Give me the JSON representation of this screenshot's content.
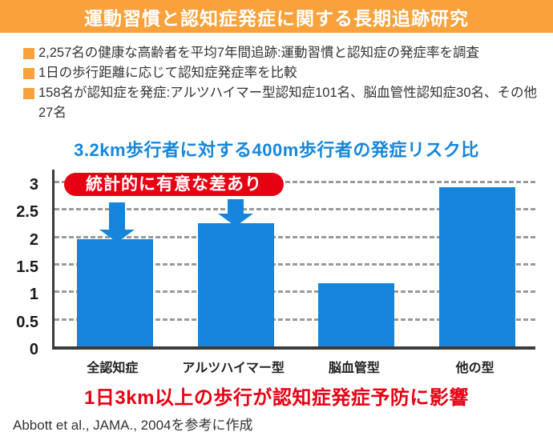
{
  "header": {
    "title": "運動習慣と認知症発症に関する長期追跡研究"
  },
  "bullets": [
    "2,257名の健康な高齢者を平均7年間追跡:運動習慣と認知症の発症率を調査",
    "1日の歩行距離に応じて認知症発症率を比較",
    "158名が認知症を発症:アルツハイマー型認知症101名、脳血管性認知症30名、その他27名"
  ],
  "chart_data": {
    "type": "bar",
    "title": "3.2km歩行者に対する400m歩行者の発症リスク比",
    "categories": [
      "全認知症",
      "アルツハイマー型",
      "脳血管型",
      "他の型"
    ],
    "values": [
      1.95,
      2.25,
      1.15,
      2.9
    ],
    "yticks": [
      "0",
      "0.5",
      "1",
      "1.5",
      "2",
      "2.5",
      "3"
    ],
    "ylim": [
      0,
      3.3
    ],
    "grid": "horizontal-dashed",
    "legend": "none",
    "annotation": "統計的に有意な差あり",
    "annotation_targets": [
      "全認知症",
      "アルツハイマー型"
    ],
    "bar_color": "#1586DB",
    "xlabel": "",
    "ylabel": ""
  },
  "conclusion": "1日3km以上の歩行が認知症発症予防に影響",
  "citation": "Abbott et al., JAMA., 2004を参考に作成",
  "colors": {
    "accent_orange": "#F9A13B",
    "bar_blue": "#1586DB",
    "alert_red": "#E60012",
    "text_dark": "#333333",
    "grid_gray": "#9A9A9A"
  }
}
